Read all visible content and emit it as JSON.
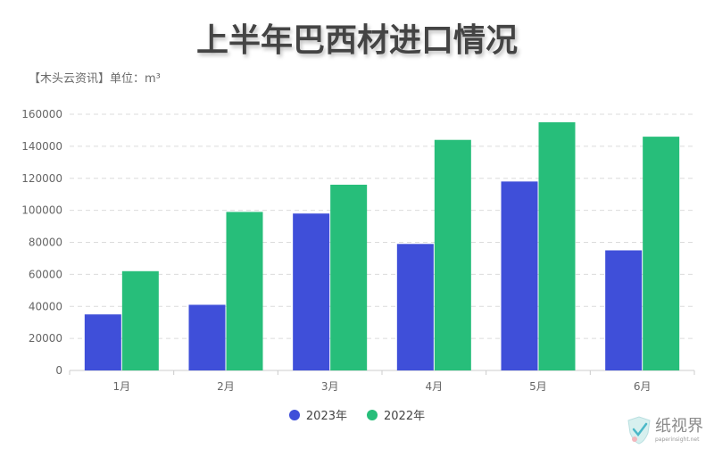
{
  "title": "上半年巴西材进口情况",
  "subtitle": "【木头云资讯】单位：m³",
  "watermark": {
    "name": "纸视界",
    "url": "paperinsight.net"
  },
  "colors": {
    "series_2023": "#3f4fd9",
    "series_2022": "#27be7a",
    "grid": "#dcdcdc",
    "axis": "#cccccc"
  },
  "chart_data": {
    "type": "bar",
    "categories": [
      "1月",
      "2月",
      "3月",
      "4月",
      "5月",
      "6月"
    ],
    "series": [
      {
        "name": "2023年",
        "values": [
          35000,
          41000,
          98000,
          79000,
          118000,
          75000
        ]
      },
      {
        "name": "2022年",
        "values": [
          62000,
          99000,
          116000,
          144000,
          155000,
          146000
        ]
      }
    ],
    "ylim": [
      0,
      160000
    ],
    "yticks": [
      0,
      20000,
      40000,
      60000,
      80000,
      100000,
      120000,
      140000,
      160000
    ],
    "grid": true,
    "legend": "bottom-center"
  }
}
